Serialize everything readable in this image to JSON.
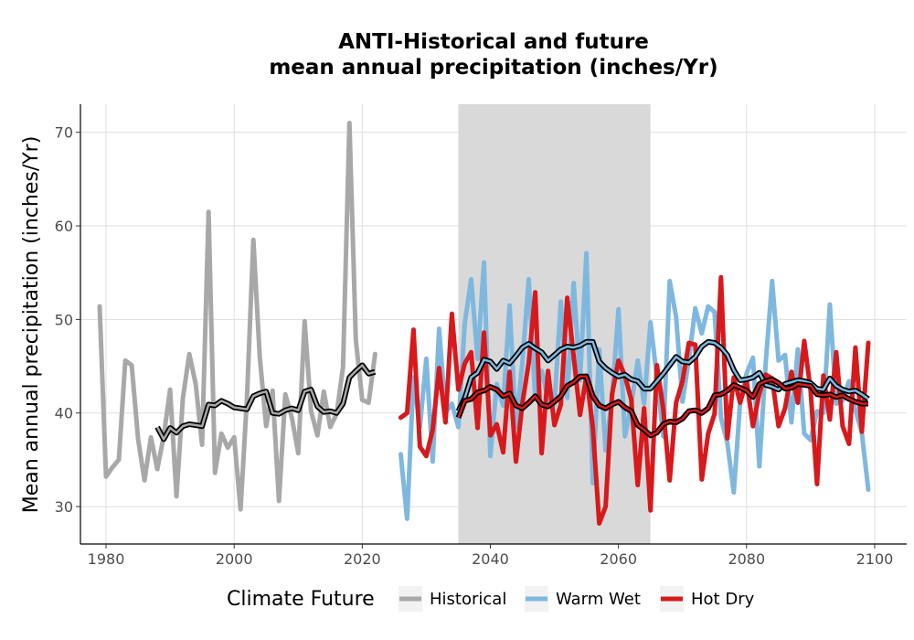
{
  "chart_data": {
    "type": "line",
    "title": [
      "ANTI-Historical and future",
      "mean annual precipitation (inches/Yr)"
    ],
    "xlabel": "",
    "ylabel": "Mean annual precipitation (inches/Yr)",
    "xlim": [
      1976,
      2105
    ],
    "ylim": [
      26,
      73
    ],
    "x_ticks": [
      1980,
      2000,
      2020,
      2040,
      2060,
      2080,
      2100
    ],
    "y_ticks": [
      30,
      40,
      50,
      60,
      70
    ],
    "grid": true,
    "shaded_period": [
      2035,
      2065
    ],
    "legend": {
      "title": "Climate Future",
      "position": "bottom",
      "items": [
        {
          "label": "Historical",
          "color": "#a8a8a8"
        },
        {
          "label": "Warm Wet",
          "color": "#7fb8df"
        },
        {
          "label": "Hot Dry",
          "color": "#d7191c"
        }
      ]
    },
    "series": [
      {
        "name": "Historical",
        "color": "#a8a8a8",
        "x": [
          1979,
          1980,
          1981,
          1982,
          1983,
          1984,
          1985,
          1986,
          1987,
          1988,
          1989,
          1990,
          1991,
          1992,
          1993,
          1994,
          1995,
          1996,
          1997,
          1998,
          1999,
          2000,
          2001,
          2002,
          2003,
          2004,
          2005,
          2006,
          2007,
          2008,
          2009,
          2010,
          2011,
          2012,
          2013,
          2014,
          2015,
          2016,
          2017,
          2018,
          2019,
          2020,
          2021,
          2022
        ],
        "values": [
          51.4,
          33.2,
          34.2,
          35.0,
          45.6,
          45.1,
          37.2,
          32.8,
          37.4,
          34.0,
          37.5,
          42.5,
          31.1,
          41.6,
          46.3,
          43.1,
          36.6,
          61.5,
          33.6,
          37.8,
          36.3,
          37.4,
          29.7,
          41.6,
          58.5,
          46.0,
          38.6,
          42.4,
          30.6,
          42.0,
          39.5,
          35.7,
          49.8,
          40.2,
          37.6,
          42.3,
          38.5,
          39.9,
          44.9,
          71.0,
          47.8,
          41.4,
          41.1,
          46.3
        ]
      },
      {
        "name": "Warm Wet",
        "color": "#7fb8df",
        "x": [
          2026,
          2027,
          2028,
          2029,
          2030,
          2031,
          2032,
          2033,
          2034,
          2035,
          2036,
          2037,
          2038,
          2039,
          2040,
          2041,
          2042,
          2043,
          2044,
          2045,
          2046,
          2047,
          2048,
          2049,
          2050,
          2051,
          2052,
          2053,
          2054,
          2055,
          2056,
          2057,
          2058,
          2059,
          2060,
          2061,
          2062,
          2063,
          2064,
          2065,
          2066,
          2067,
          2068,
          2069,
          2070,
          2071,
          2072,
          2073,
          2074,
          2075,
          2076,
          2077,
          2078,
          2079,
          2080,
          2081,
          2082,
          2083,
          2084,
          2085,
          2086,
          2087,
          2088,
          2089,
          2090,
          2091,
          2092,
          2093,
          2094,
          2095,
          2096,
          2097,
          2098,
          2099
        ],
        "values": [
          35.6,
          28.7,
          43.8,
          38.5,
          45.8,
          34.8,
          49.0,
          40.0,
          41.0,
          38.5,
          49.6,
          54.3,
          45.8,
          56.1,
          35.4,
          43.1,
          40.8,
          51.5,
          38.5,
          45.4,
          54.3,
          41.5,
          44.5,
          41.5,
          40.9,
          51.9,
          41.6,
          53.9,
          43.5,
          57.1,
          32.5,
          46.8,
          36.0,
          41.5,
          51.1,
          37.5,
          40.9,
          45.6,
          41.0,
          49.7,
          43.8,
          37.5,
          54.1,
          50.3,
          41.2,
          45.7,
          51.2,
          48.5,
          51.4,
          50.8,
          39.5,
          36.8,
          31.5,
          41.2,
          44.2,
          45.9,
          34.3,
          45.4,
          54.1,
          45.6,
          46.2,
          39.0,
          46.8,
          37.8,
          37.1,
          40.2,
          40.0,
          51.6,
          41.0,
          41.3,
          43.4,
          40.3,
          37.9,
          31.8
        ]
      },
      {
        "name": "Hot Dry",
        "color": "#d7191c",
        "x": [
          2026,
          2027,
          2028,
          2029,
          2030,
          2031,
          2032,
          2033,
          2034,
          2035,
          2036,
          2037,
          2038,
          2039,
          2040,
          2041,
          2042,
          2043,
          2044,
          2045,
          2046,
          2047,
          2048,
          2049,
          2050,
          2051,
          2052,
          2053,
          2054,
          2055,
          2056,
          2057,
          2058,
          2059,
          2060,
          2061,
          2062,
          2063,
          2064,
          2065,
          2066,
          2067,
          2068,
          2069,
          2070,
          2071,
          2072,
          2073,
          2074,
          2075,
          2076,
          2077,
          2078,
          2079,
          2080,
          2081,
          2082,
          2083,
          2084,
          2085,
          2086,
          2087,
          2088,
          2089,
          2090,
          2091,
          2092,
          2093,
          2094,
          2095,
          2096,
          2097,
          2098,
          2099
        ],
        "values": [
          39.5,
          40.0,
          48.9,
          36.4,
          35.4,
          38.2,
          44.8,
          39.0,
          50.6,
          42.5,
          45.3,
          46.5,
          38.4,
          48.6,
          37.6,
          38.8,
          35.8,
          44.4,
          34.8,
          41.0,
          45.4,
          52.9,
          35.7,
          44.5,
          38.7,
          40.9,
          52.3,
          46.1,
          39.8,
          44.0,
          38.4,
          28.2,
          30.0,
          42.0,
          45.6,
          44.0,
          41.4,
          32.3,
          40.5,
          29.6,
          45.1,
          40.4,
          32.8,
          41.1,
          43.4,
          47.5,
          47.3,
          32.9,
          37.8,
          39.9,
          54.5,
          37.3,
          43.8,
          41.1,
          43.5,
          38.6,
          42.1,
          44.1,
          43.7,
          38.6,
          40.5,
          44.4,
          41.1,
          47.7,
          42.4,
          32.4,
          44.0,
          39.3,
          46.5,
          38.6,
          36.7,
          47.0,
          38.0,
          47.5
        ]
      }
    ],
    "rolling_mean": [
      {
        "name": "Historical",
        "x": [
          1988,
          1989,
          1990,
          1991,
          1992,
          1993,
          1994,
          1995,
          1996,
          1997,
          1998,
          1999,
          2000,
          2001,
          2002,
          2003,
          2004,
          2005,
          2006,
          2007,
          2008,
          2009,
          2010,
          2011,
          2012,
          2013,
          2014,
          2015,
          2016,
          2017,
          2018,
          2019,
          2020,
          2021,
          2022
        ],
        "values": [
          38.5,
          37.2,
          38.4,
          37.9,
          38.6,
          38.8,
          38.7,
          38.6,
          40.9,
          40.8,
          41.3,
          41.0,
          40.6,
          40.5,
          40.4,
          41.8,
          42.1,
          42.3,
          40.0,
          39.9,
          40.3,
          40.5,
          40.3,
          42.3,
          42.5,
          40.7,
          40.1,
          40.2,
          40.0,
          41.0,
          43.8,
          44.5,
          45.1,
          44.2,
          44.4
        ]
      },
      {
        "name": "Warm Wet",
        "x": [
          2035,
          2036,
          2037,
          2038,
          2039,
          2040,
          2041,
          2042,
          2043,
          2044,
          2045,
          2046,
          2047,
          2048,
          2049,
          2050,
          2051,
          2052,
          2053,
          2054,
          2055,
          2056,
          2057,
          2058,
          2059,
          2060,
          2061,
          2062,
          2063,
          2064,
          2065,
          2066,
          2067,
          2068,
          2069,
          2070,
          2071,
          2072,
          2073,
          2074,
          2075,
          2076,
          2077,
          2078,
          2079,
          2080,
          2081,
          2082,
          2083,
          2084,
          2085,
          2086,
          2087,
          2088,
          2089,
          2090,
          2091,
          2092,
          2093,
          2094,
          2095,
          2096,
          2097,
          2098,
          2099
        ],
        "values": [
          40.2,
          41.6,
          43.8,
          44.3,
          45.7,
          45.5,
          44.7,
          45.6,
          45.3,
          46.1,
          47.0,
          47.4,
          46.9,
          46.5,
          45.6,
          46.2,
          46.8,
          47.1,
          47.0,
          47.2,
          47.6,
          47.6,
          45.5,
          44.8,
          44.3,
          43.9,
          44.1,
          43.6,
          43.4,
          42.6,
          42.6,
          43.4,
          44.2,
          45.1,
          46.0,
          45.5,
          45.4,
          46.0,
          47.1,
          47.6,
          47.5,
          47.0,
          46.2,
          44.6,
          43.5,
          43.6,
          43.8,
          44.3,
          43.0,
          42.8,
          42.5,
          43.1,
          43.3,
          43.5,
          43.4,
          43.2,
          42.6,
          42.5,
          43.7,
          42.9,
          42.5,
          42.3,
          42.4,
          42.0,
          41.5
        ]
      },
      {
        "name": "Hot Dry",
        "x": [
          2035,
          2036,
          2037,
          2038,
          2039,
          2040,
          2041,
          2042,
          2043,
          2044,
          2045,
          2046,
          2047,
          2048,
          2049,
          2050,
          2051,
          2052,
          2053,
          2054,
          2055,
          2056,
          2057,
          2058,
          2059,
          2060,
          2061,
          2062,
          2063,
          2064,
          2065,
          2066,
          2067,
          2068,
          2069,
          2070,
          2071,
          2072,
          2073,
          2074,
          2075,
          2076,
          2077,
          2078,
          2079,
          2080,
          2081,
          2082,
          2083,
          2084,
          2085,
          2086,
          2087,
          2088,
          2089,
          2090,
          2091,
          2092,
          2093,
          2094,
          2095,
          2096,
          2097,
          2098,
          2099
        ],
        "values": [
          39.5,
          41.3,
          41.5,
          42.2,
          42.4,
          42.8,
          42.5,
          41.8,
          42.1,
          40.8,
          40.5,
          41.1,
          41.8,
          40.9,
          40.7,
          41.2,
          41.8,
          42.9,
          43.3,
          43.9,
          43.9,
          41.8,
          40.8,
          40.5,
          40.9,
          41.2,
          40.6,
          40.2,
          38.7,
          38.2,
          37.6,
          37.9,
          38.8,
          39.1,
          39.0,
          39.4,
          40.2,
          40.3,
          40.0,
          40.5,
          41.9,
          42.0,
          42.4,
          43.0,
          42.7,
          42.4,
          41.7,
          43.1,
          43.4,
          43.6,
          43.2,
          42.6,
          42.7,
          43.1,
          43.0,
          42.9,
          42.0,
          41.9,
          42.0,
          41.7,
          41.9,
          41.5,
          41.2,
          41.0,
          41.0
        ]
      }
    ]
  }
}
